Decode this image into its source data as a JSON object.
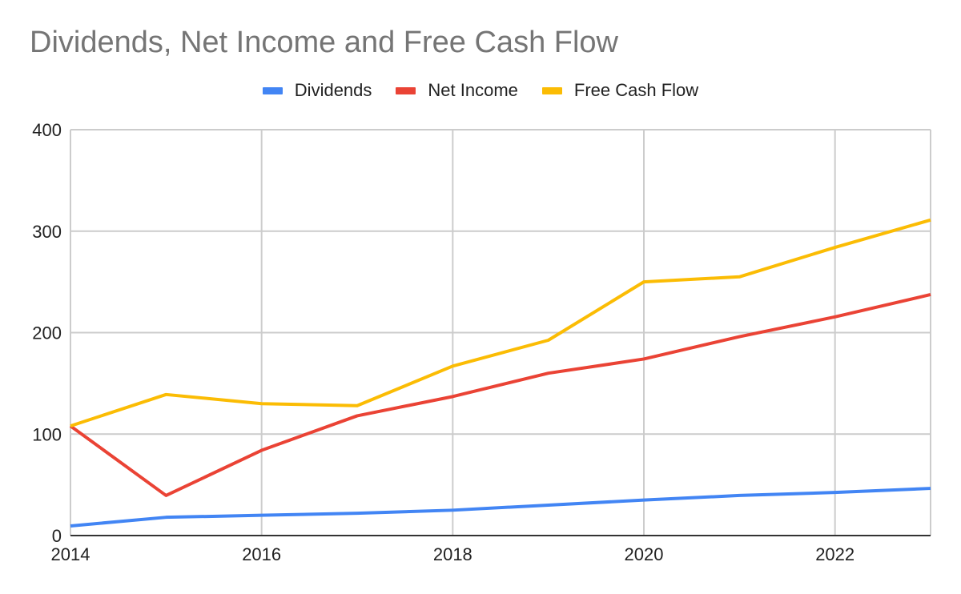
{
  "chart_data": {
    "type": "line",
    "title": "Dividends, Net Income and Free Cash Flow",
    "xlabel": "",
    "ylabel": "",
    "x": [
      2014,
      2015,
      2016,
      2017,
      2018,
      2019,
      2020,
      2021,
      2022,
      2023
    ],
    "x_ticks": [
      "2014",
      "2016",
      "2018",
      "2020",
      "2022"
    ],
    "y_ticks": [
      "0",
      "100",
      "200",
      "300",
      "400"
    ],
    "ylim": [
      0,
      400
    ],
    "xlim": [
      2014,
      2023
    ],
    "grid": true,
    "legend_position": "top",
    "series": [
      {
        "name": "Dividends",
        "color": "#4285F4",
        "values": [
          9.5,
          18,
          20,
          22,
          25,
          30,
          35,
          39.5,
          42.5,
          46.5
        ]
      },
      {
        "name": "Net Income",
        "color": "#EA4335",
        "values": [
          108,
          39.5,
          84,
          118,
          137,
          160,
          174,
          196,
          215.5,
          237.5
        ]
      },
      {
        "name": "Free Cash Flow",
        "color": "#FBBC04",
        "values": [
          108,
          139,
          130,
          128,
          167,
          192.5,
          250,
          255,
          284,
          311
        ]
      }
    ]
  }
}
